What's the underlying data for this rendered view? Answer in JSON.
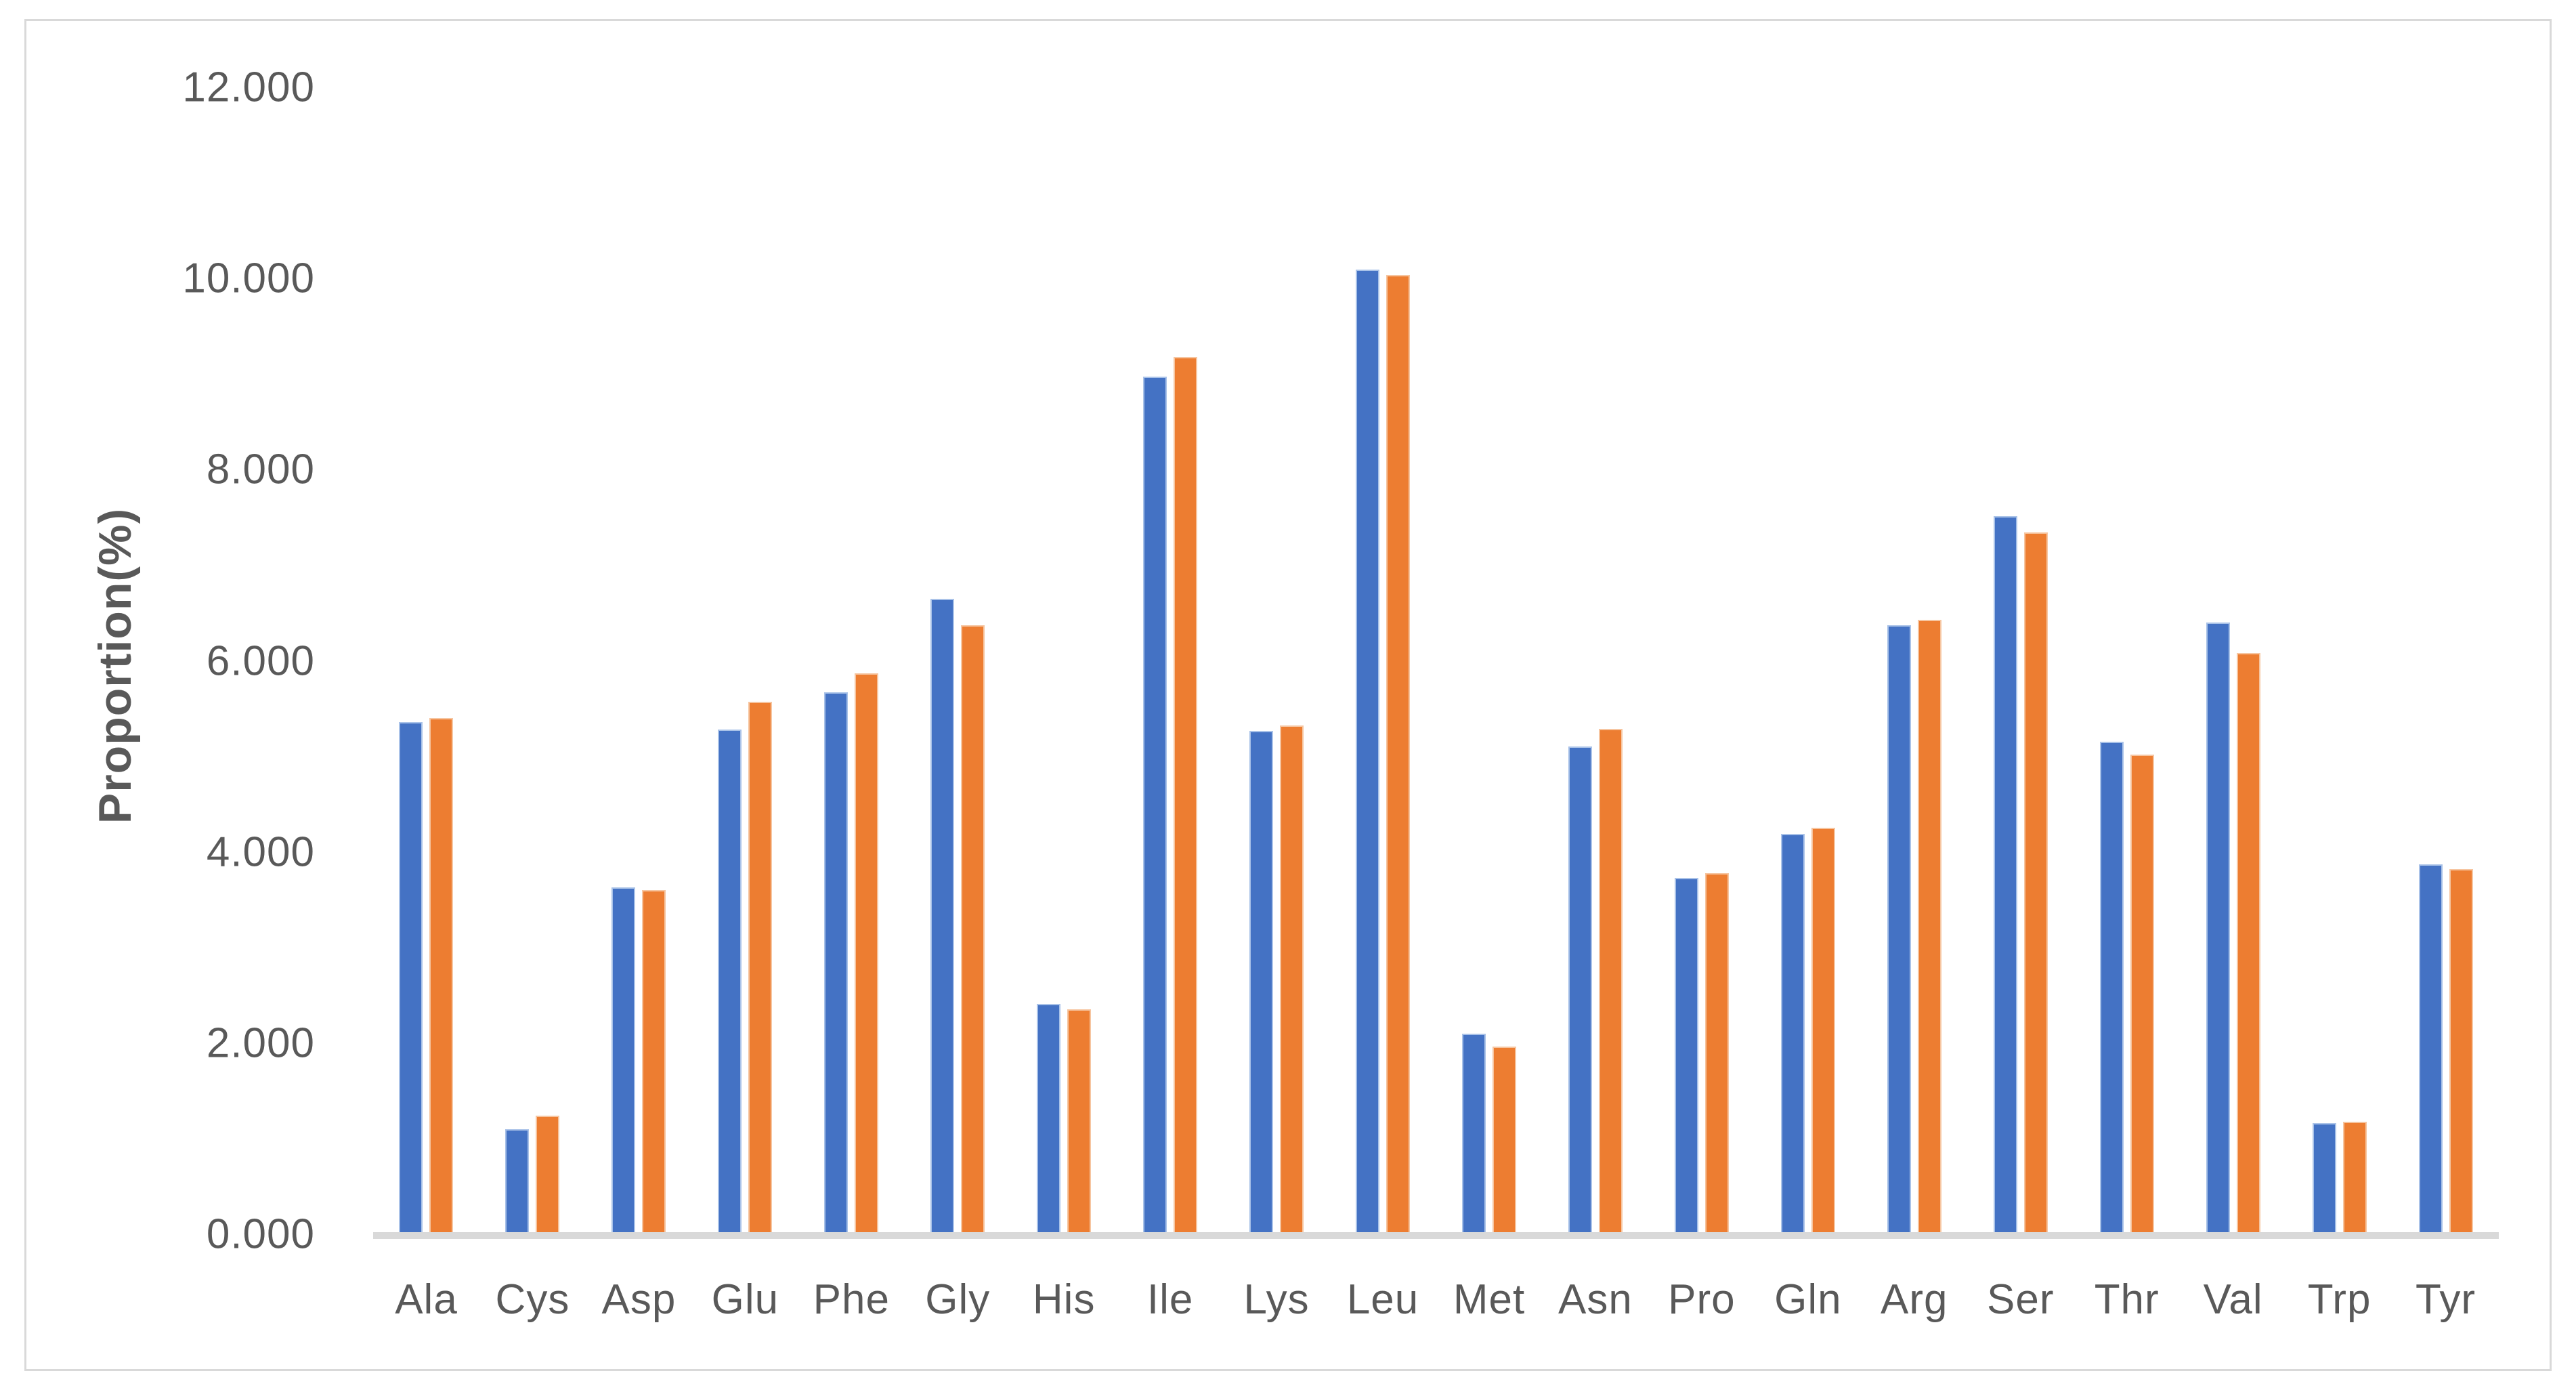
{
  "chart_data": {
    "type": "bar",
    "title": "",
    "ylabel": "Proportion(%)",
    "xlabel": "",
    "ylim": [
      0,
      12
    ],
    "ytick_step": 2,
    "ytick_labels": [
      "0.000",
      "2.000",
      "4.000",
      "6.000",
      "8.000",
      "10.000",
      "12.000"
    ],
    "grid": false,
    "legend_position": "none",
    "categories": [
      "Ala",
      "Cys",
      "Asp",
      "Glu",
      "Phe",
      "Gly",
      "His",
      "Ile",
      "Lys",
      "Leu",
      "Met",
      "Asn",
      "Pro",
      "Gln",
      "Arg",
      "Ser",
      "Thr",
      "Val",
      "Trp",
      "Tyr"
    ],
    "series": [
      {
        "label": "",
        "color": "#4472C4",
        "border_color": "#A9C2E8",
        "values": [
          5.36,
          1.1,
          3.63,
          5.28,
          5.67,
          6.65,
          2.41,
          8.97,
          5.27,
          10.09,
          2.1,
          5.1,
          3.73,
          4.19,
          6.37,
          7.51,
          5.15,
          6.4,
          1.16,
          3.87
        ]
      },
      {
        "label": "",
        "color": "#ED7D31",
        "border_color": "#F6C5A0",
        "values": [
          5.4,
          1.24,
          3.6,
          5.57,
          5.87,
          6.37,
          2.35,
          9.18,
          5.32,
          10.04,
          1.96,
          5.29,
          3.78,
          4.25,
          6.43,
          7.34,
          5.02,
          6.08,
          1.18,
          3.82
        ]
      }
    ],
    "colors": {
      "axis_line": "#D9D9D9",
      "frame_border": "#D9D9D9",
      "text": "#595959",
      "background": "#FFFFFF"
    }
  }
}
